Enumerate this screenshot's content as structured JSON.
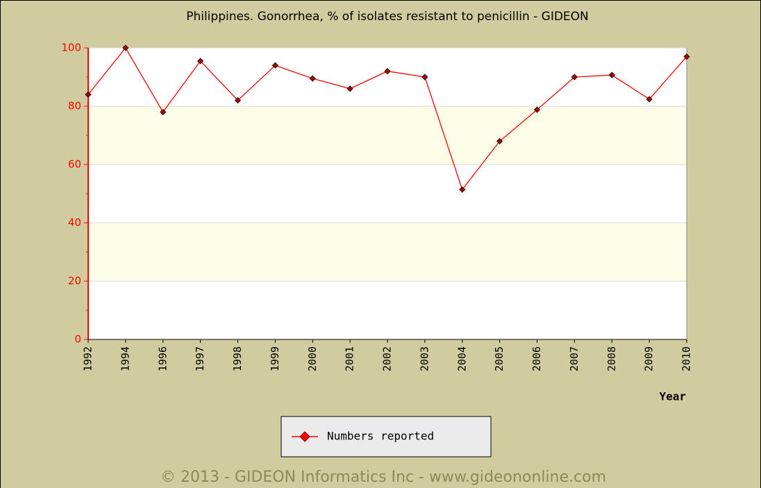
{
  "chart_data": {
    "type": "line",
    "title": "Philippines. Gonorrhea, % of isolates resistant to penicillin - GIDEON",
    "x_label": "Year",
    "categories": [
      "1992",
      "1994",
      "1996",
      "1997",
      "1998",
      "1999",
      "2000",
      "2001",
      "2002",
      "2003",
      "2004",
      "2005",
      "2006",
      "2007",
      "2008",
      "2009",
      "2010"
    ],
    "series": [
      {
        "name": "Numbers reported",
        "color": "#ff0000",
        "values": [
          84,
          100,
          78,
          95.5,
          82,
          94,
          89.5,
          86,
          92,
          90,
          51.4,
          68,
          78.8,
          90,
          90.7,
          82.4,
          97
        ]
      }
    ],
    "ylim": [
      0,
      100
    ],
    "yticks": [
      0,
      20,
      40,
      60,
      80,
      100
    ],
    "grid": true
  },
  "copyright": "© 2013 - GIDEON Informatics Inc - www.gideononline.com"
}
